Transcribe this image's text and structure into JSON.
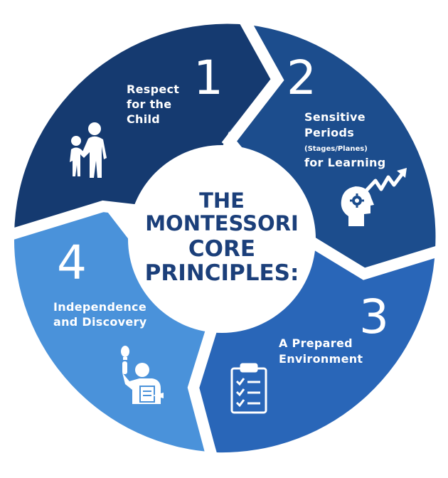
{
  "center": {
    "line1": "THE",
    "line2": "MONTESSORI",
    "line3": "CORE",
    "line4": "PRINCIPLES:"
  },
  "segments": [
    {
      "number": "1",
      "label_lines": [
        "Respect",
        "for the",
        "Child"
      ],
      "color": "#153a70",
      "icon": "adult-helping-child-icon"
    },
    {
      "number": "2",
      "label_lines": [
        "Sensitive",
        "Periods",
        "(Stages/Planes)",
        "for Learning"
      ],
      "color": "#1c4d8d",
      "icon": "mind-growth-icon"
    },
    {
      "number": "3",
      "label_lines": [
        "A Prepared",
        "Environment"
      ],
      "color": "#2966b8",
      "icon": "checklist-clipboard-icon"
    },
    {
      "number": "4",
      "label_lines": [
        "Independence",
        "and Discovery"
      ],
      "color": "#4a92da",
      "icon": "raised-hand-idea-icon"
    }
  ],
  "colors": {
    "center_text": "#1b3f7a",
    "background": "#ffffff"
  }
}
